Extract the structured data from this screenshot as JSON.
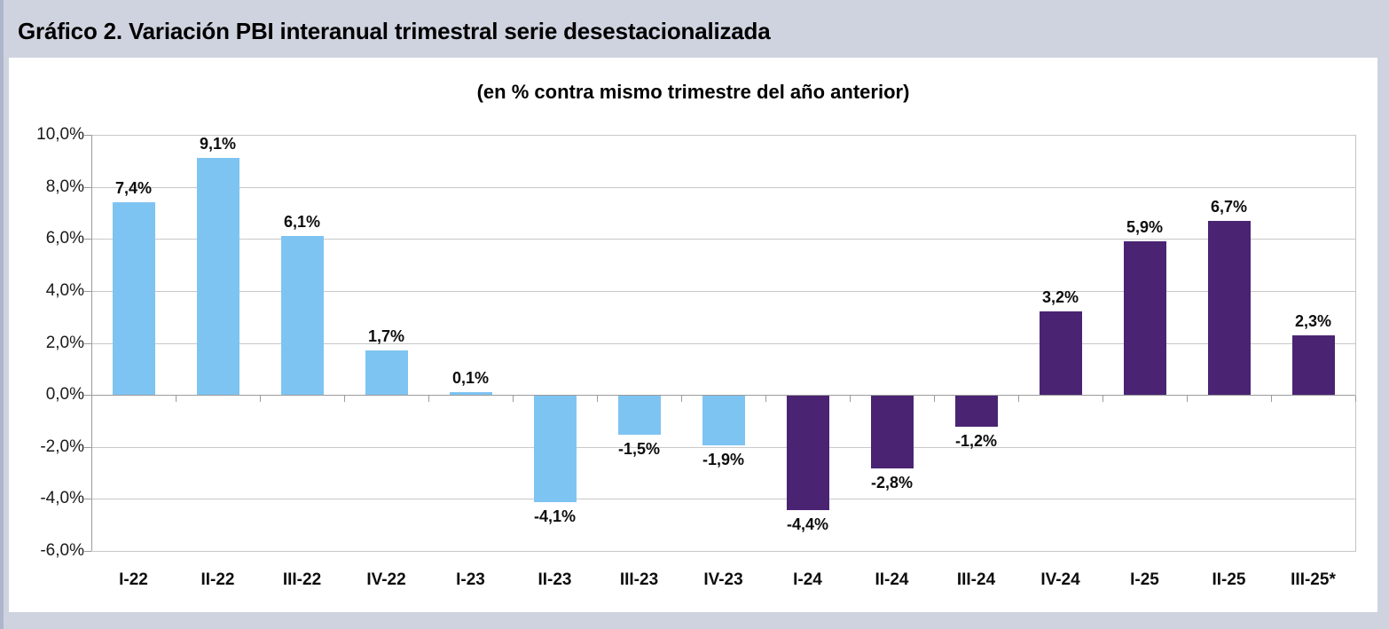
{
  "page": {
    "title": "Gráfico 2. Variación PBI interanual trimestral serie desestacionalizada",
    "background_color": "#cfd3df",
    "panel_color": "#ffffff",
    "left_stripe_color": "#aeb6cb"
  },
  "chart_data": {
    "type": "bar",
    "title": "(en % contra mismo trimestre del año anterior)",
    "xlabel": "",
    "ylabel": "",
    "categories": [
      "I-22",
      "II-22",
      "III-22",
      "IV-22",
      "I-23",
      "II-23",
      "III-23",
      "IV-23",
      "I-24",
      "II-24",
      "III-24",
      "IV-24",
      "I-25",
      "II-25",
      "III-25*"
    ],
    "values": [
      7.4,
      9.1,
      6.1,
      1.7,
      0.1,
      -4.1,
      -1.5,
      -1.9,
      -4.4,
      -2.8,
      -1.2,
      3.2,
      5.9,
      6.7,
      2.3
    ],
    "value_labels": [
      "7,4%",
      "9,1%",
      "6,1%",
      "1,7%",
      "0,1%",
      "-4,1%",
      "-1,5%",
      "-1,9%",
      "-4,4%",
      "-2,8%",
      "-1,2%",
      "3,2%",
      "5,9%",
      "6,7%",
      "2,3%"
    ],
    "bar_colors": [
      "#7ec4f2",
      "#7ec4f2",
      "#7ec4f2",
      "#7ec4f2",
      "#7ec4f2",
      "#7ec4f2",
      "#7ec4f2",
      "#7ec4f2",
      "#4a2473",
      "#4a2473",
      "#4a2473",
      "#4a2473",
      "#4a2473",
      "#4a2473",
      "#4a2473"
    ],
    "ylim": [
      -6,
      10
    ],
    "ytick_step": 2,
    "ytick_labels": [
      "10,0%",
      "8,0%",
      "6,0%",
      "4,0%",
      "2,0%",
      "0,0%",
      "-2,0%",
      "-4,0%",
      "-6,0%"
    ],
    "ytick_values": [
      10,
      8,
      6,
      4,
      2,
      0,
      -2,
      -4,
      -6
    ],
    "grid": true,
    "legend": "none"
  }
}
